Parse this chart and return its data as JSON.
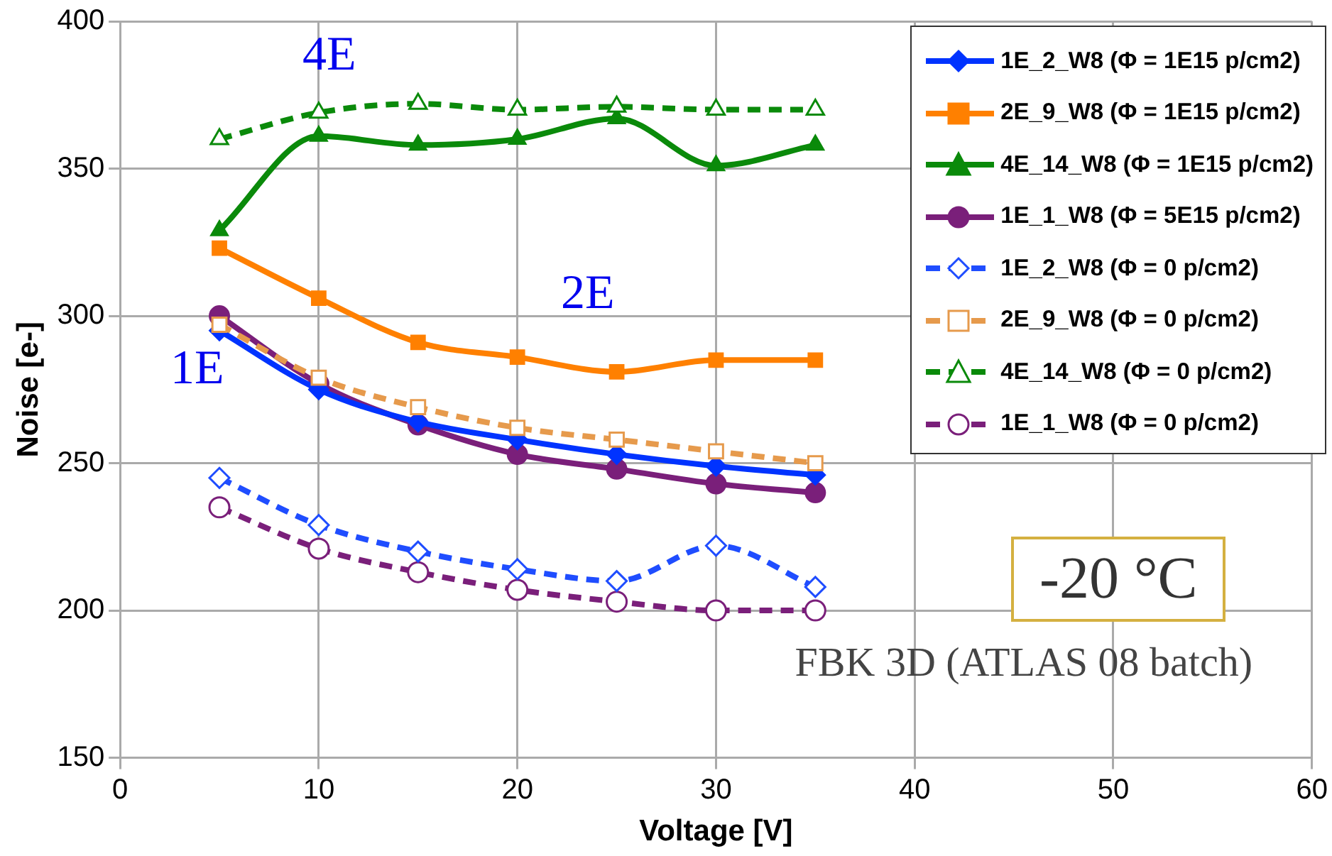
{
  "chart_data": {
    "type": "line",
    "xlabel": "Voltage [V]",
    "ylabel": "Noise [e-]",
    "x": [
      5,
      10,
      15,
      20,
      25,
      30,
      35
    ],
    "xlim": [
      0,
      60
    ],
    "xticks": [
      0,
      10,
      20,
      30,
      40,
      50,
      60
    ],
    "ylim": [
      150,
      400
    ],
    "yticks": [
      150,
      200,
      250,
      300,
      350,
      400
    ],
    "grid": true,
    "legend": "top right",
    "series": [
      {
        "name": "1E_2_W8 (Φ = 1E15 p/cm2)",
        "color": "#0033ff",
        "marker": "diamond",
        "line_style": "solid",
        "values": [
          295,
          275,
          264,
          258,
          253,
          249,
          246
        ]
      },
      {
        "name": "2E_9_W8 (Φ = 1E15 p/cm2)",
        "color": "#ff8000",
        "marker": "square",
        "line_style": "solid",
        "values": [
          323,
          306,
          291,
          286,
          281,
          285,
          285
        ]
      },
      {
        "name": "4E_14_W8 (Φ = 1E15 p/cm2)",
        "color": "#0a8a0a",
        "marker": "triangle",
        "line_style": "solid",
        "values": [
          329,
          361,
          358,
          360,
          367,
          351,
          358
        ]
      },
      {
        "name": "1E_1_W8 (Φ = 5E15 p/cm2)",
        "color": "#7a1f7a",
        "marker": "circle",
        "line_style": "solid",
        "values": [
          300,
          277,
          263,
          253,
          248,
          243,
          240
        ]
      },
      {
        "name": "1E_2_W8 (Φ = 0 p/cm2)",
        "color": "#1f4dff",
        "marker": "diamond",
        "line_style": "dashed",
        "values": [
          245,
          229,
          220,
          214,
          210,
          222,
          208
        ]
      },
      {
        "name": "2E_9_W8 (Φ = 0 p/cm2)",
        "color": "#e69a4c",
        "marker": "square",
        "line_style": "dashed",
        "values": [
          297,
          279,
          269,
          262,
          258,
          254,
          250
        ]
      },
      {
        "name": "4E_14_W8 (Φ = 0 p/cm2)",
        "color": "#0a8a0a",
        "marker": "triangle",
        "line_style": "dashed",
        "values": [
          360,
          369,
          372,
          370,
          371,
          370,
          370
        ]
      },
      {
        "name": "1E_1_W8 (Φ = 0 p/cm2)",
        "color": "#7a1f7a",
        "marker": "circle",
        "line_style": "dashed",
        "values": [
          235,
          221,
          213,
          207,
          203,
          200,
          200
        ]
      }
    ],
    "annotations": [
      "4E",
      "2E",
      "1E",
      "-20 °C",
      "FBK 3D (ATLAS 08 batch)"
    ]
  }
}
